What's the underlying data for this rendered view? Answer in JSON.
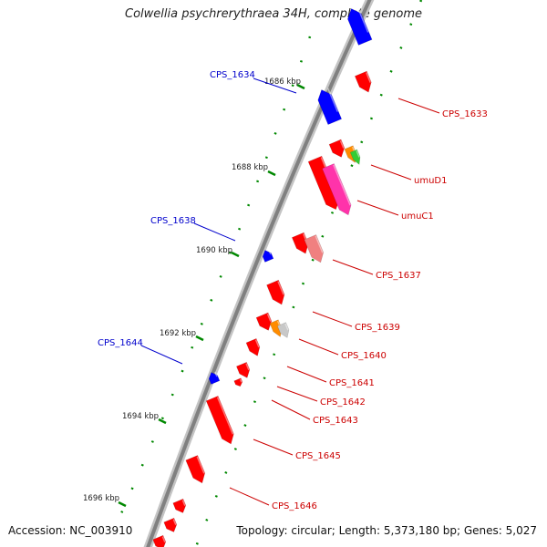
{
  "title": "Colwellia psychrerythraea 34H, complete genome",
  "footer": {
    "accession": "Accession: NC_003910",
    "summary": "Topology: circular; Length: 5,373,180 bp; Genes: 5,027"
  },
  "colors": {
    "forward_gene": "#ff0000",
    "reverse_gene": "#0000ff",
    "orange_gene": "#ff8c00",
    "green_gene": "#33cc33",
    "magenta_gene": "#ff33aa",
    "pink_gene": "#f08080",
    "grey_gene": "#c8c8c8",
    "tick_green": "#008800",
    "backbone": "#808080",
    "forward_label": "#cc0000",
    "reverse_label": "#0000cc"
  },
  "kbp_ticks": [
    "1686 kbp",
    "1688 kbp",
    "1690 kbp",
    "1692 kbp",
    "1694 kbp",
    "1696 kbp"
  ],
  "gene_labels": {
    "reverse": [
      "CPS_1634",
      "CPS_1638",
      "CPS_1644"
    ],
    "forward": [
      "CPS_1633",
      "umuD1",
      "umuC1",
      "CPS_1637",
      "CPS_1639",
      "CPS_1640",
      "CPS_1641",
      "CPS_1642",
      "CPS_1643",
      "CPS_1645",
      "CPS_1646"
    ]
  }
}
